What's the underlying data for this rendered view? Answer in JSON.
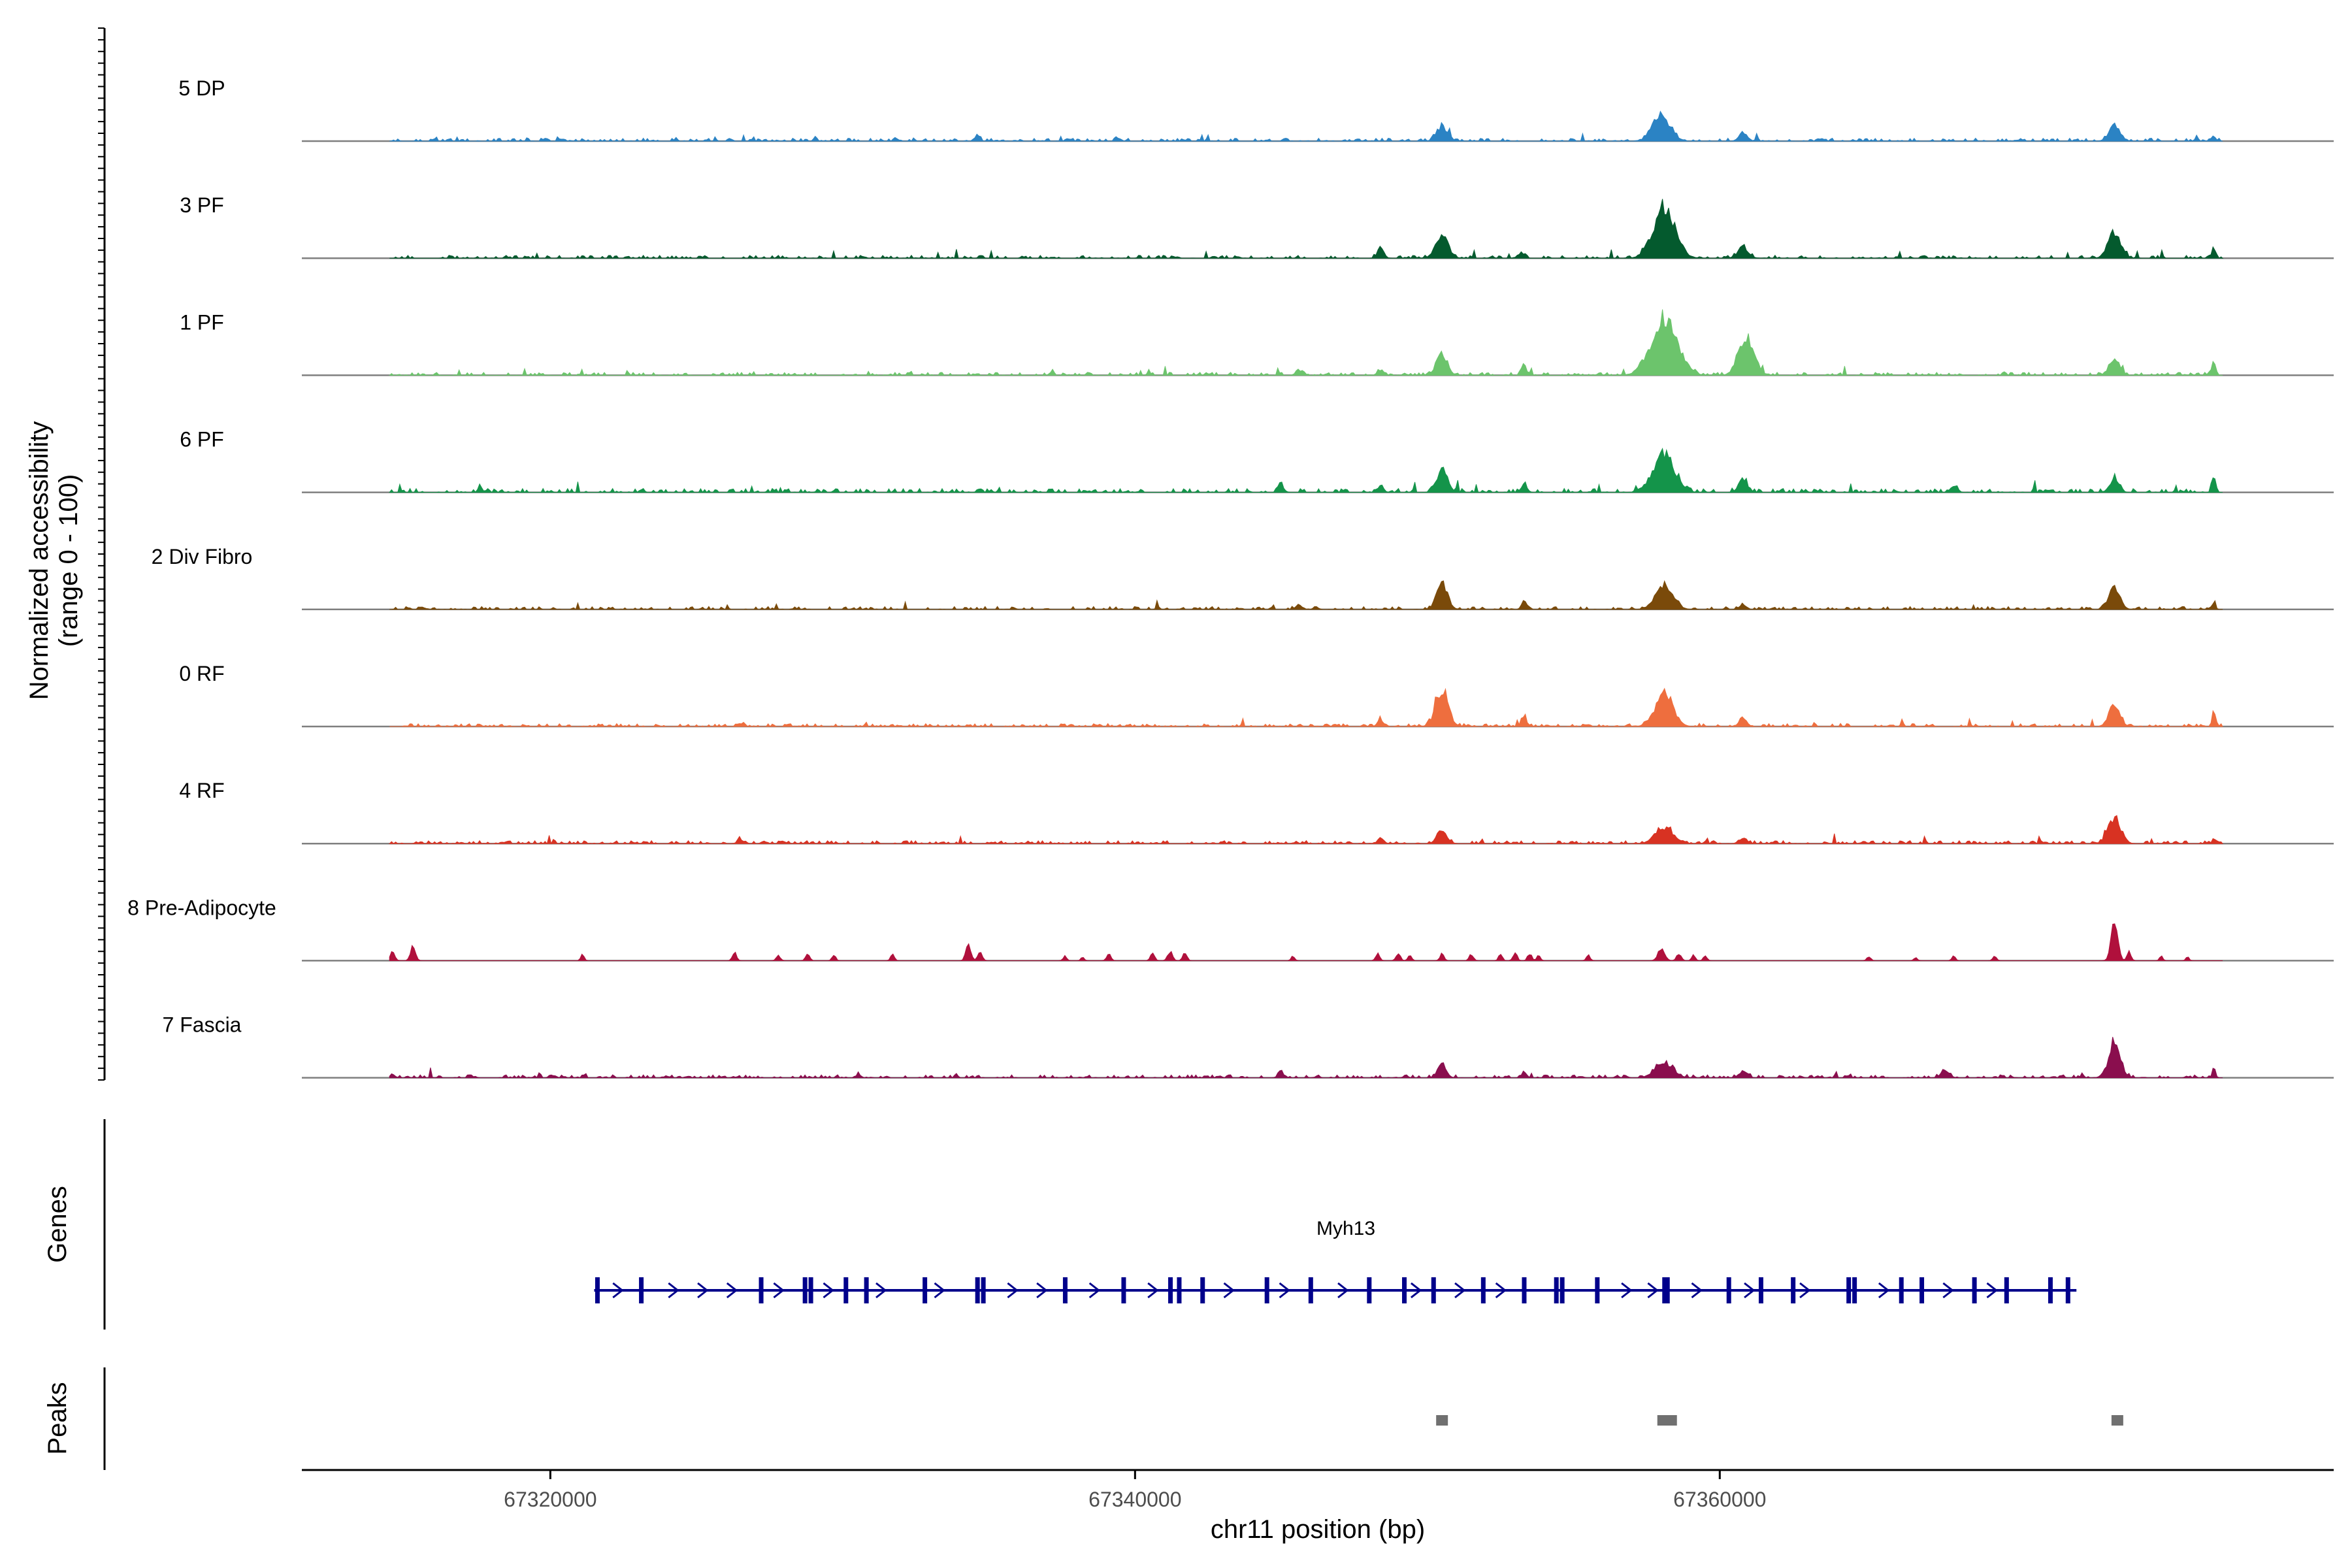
{
  "chart_data": {
    "type": "area",
    "title": "",
    "ylabel_line1": "Normalized accessibility",
    "ylabel_line2": "(range 0 - 100)",
    "xlabel": "chr11 position (bp)",
    "genes_label": "Genes",
    "peaks_label": "Peaks",
    "gene_name": "Myh13",
    "xlim": [
      67311500,
      67381000
    ],
    "ylim": [
      0,
      100
    ],
    "x_ticks": [
      {
        "value": 67320000,
        "label": "67320000"
      },
      {
        "value": 67340000,
        "label": "67340000"
      },
      {
        "value": 67360000,
        "label": "67360000"
      }
    ],
    "signal_range_bp": [
      67314500,
      67377200
    ],
    "gene": {
      "start": 67321500,
      "end": 67372200,
      "strand": "+",
      "color": "#00008B",
      "exons": [
        67321600,
        67323100,
        67327200,
        67328700,
        67328900,
        67330100,
        67330800,
        67332800,
        67334600,
        67334800,
        67337600,
        67339600,
        67341200,
        67341500,
        67342300,
        67344500,
        67346000,
        67348000,
        67349200,
        67350200,
        67351900,
        67353300,
        67354400,
        67354600,
        67355800,
        67358100,
        67358200,
        67360300,
        67361400,
        67362500,
        67364400,
        67364600,
        67366200,
        67366900,
        67368700,
        67369800,
        67371300,
        67371900
      ],
      "arrows": [
        67322300,
        67324200,
        67325200,
        67326200,
        67327800,
        67329500,
        67331300,
        67333300,
        67335800,
        67336800,
        67338600,
        67340600,
        67343200,
        67345100,
        67347100,
        67349600,
        67351100,
        67352500,
        67356800,
        67357700,
        67359200,
        67361000,
        67362900,
        67365600,
        67367800,
        67369300
      ]
    },
    "peaks": [
      67350500,
      67358200,
      67373600
    ],
    "peak_color": "#707070",
    "series": [
      {
        "name": "5 DP",
        "color": "#2B83C4",
        "noise": 3,
        "seed": 11,
        "peaks": [
          [
            67350500,
            16,
            260
          ],
          [
            67358000,
            26,
            420
          ],
          [
            67360800,
            9,
            200
          ],
          [
            67373500,
            18,
            260
          ],
          [
            67376900,
            6,
            80
          ],
          [
            67334600,
            5,
            120
          ]
        ]
      },
      {
        "name": "3 PF",
        "color": "#045A2E",
        "noise": 3,
        "seed": 23,
        "peaks": [
          [
            67350500,
            24,
            300
          ],
          [
            67358100,
            58,
            520
          ],
          [
            67360800,
            12,
            260
          ],
          [
            67373500,
            30,
            300
          ],
          [
            67376900,
            12,
            90
          ],
          [
            67348400,
            10,
            160
          ],
          [
            67353200,
            6,
            150
          ]
        ]
      },
      {
        "name": "1 PF",
        "color": "#6CC46C",
        "noise": 3,
        "seed": 37,
        "peaks": [
          [
            67350500,
            22,
            260
          ],
          [
            67353300,
            12,
            120
          ],
          [
            67358100,
            62,
            620
          ],
          [
            67360900,
            42,
            360
          ],
          [
            67373500,
            16,
            260
          ],
          [
            67376900,
            18,
            90
          ],
          [
            67345600,
            5,
            150
          ],
          [
            67348400,
            6,
            150
          ]
        ]
      },
      {
        "name": "6 PF",
        "color": "#14944A",
        "noise": 4,
        "seed": 41,
        "peaks": [
          [
            67350500,
            26,
            260
          ],
          [
            67353300,
            9,
            140
          ],
          [
            67358100,
            42,
            500
          ],
          [
            67360800,
            14,
            220
          ],
          [
            67373500,
            14,
            220
          ],
          [
            67376900,
            20,
            90
          ],
          [
            67317600,
            7,
            100
          ],
          [
            67345000,
            7,
            140
          ],
          [
            67348400,
            8,
            140
          ],
          [
            67368000,
            8,
            160
          ]
        ]
      },
      {
        "name": "2 Div Fibro",
        "color": "#7A4A0A",
        "noise": 3,
        "seed": 53,
        "peaks": [
          [
            67350500,
            28,
            260
          ],
          [
            67353300,
            9,
            120
          ],
          [
            67358100,
            26,
            420
          ],
          [
            67360800,
            6,
            160
          ],
          [
            67373500,
            24,
            260
          ],
          [
            67376900,
            8,
            80
          ],
          [
            67345600,
            5,
            160
          ]
        ]
      },
      {
        "name": "0 RF",
        "color": "#EE6E3E",
        "noise": 3,
        "seed": 67,
        "peaks": [
          [
            67350500,
            42,
            300
          ],
          [
            67353300,
            12,
            130
          ],
          [
            67358100,
            36,
            420
          ],
          [
            67360800,
            9,
            180
          ],
          [
            67373500,
            22,
            260
          ],
          [
            67376900,
            20,
            80
          ],
          [
            67348400,
            8,
            140
          ],
          [
            67326500,
            4,
            140
          ]
        ]
      },
      {
        "name": "4 RF",
        "color": "#D83222",
        "noise": 3,
        "seed": 71,
        "peaks": [
          [
            67350500,
            14,
            240
          ],
          [
            67358100,
            18,
            420
          ],
          [
            67360800,
            6,
            180
          ],
          [
            67373500,
            28,
            300
          ],
          [
            67376900,
            5,
            80
          ],
          [
            67348400,
            6,
            140
          ],
          [
            67326500,
            5,
            140
          ]
        ]
      },
      {
        "name": "8 Pre-Adipocyte",
        "color": "#B0103C",
        "noise": 0,
        "seed": 83,
        "peaks": [
          [
            67314600,
            10,
            110
          ],
          [
            67315300,
            16,
            120
          ],
          [
            67321100,
            8,
            80
          ],
          [
            67326300,
            9,
            100
          ],
          [
            67327800,
            6,
            100
          ],
          [
            67328800,
            7,
            100
          ],
          [
            67329700,
            6,
            90
          ],
          [
            67331700,
            7,
            90
          ],
          [
            67334300,
            18,
            120
          ],
          [
            67334700,
            12,
            100
          ],
          [
            67337600,
            5,
            90
          ],
          [
            67338200,
            4,
            80
          ],
          [
            67339100,
            8,
            100
          ],
          [
            67340600,
            8,
            100
          ],
          [
            67341200,
            10,
            120
          ],
          [
            67341700,
            9,
            100
          ],
          [
            67345400,
            5,
            90
          ],
          [
            67348300,
            8,
            100
          ],
          [
            67349000,
            9,
            100
          ],
          [
            67349400,
            6,
            90
          ],
          [
            67350500,
            8,
            100
          ],
          [
            67351500,
            7,
            100
          ],
          [
            67352500,
            7,
            90
          ],
          [
            67353000,
            9,
            100
          ],
          [
            67353500,
            8,
            100
          ],
          [
            67353800,
            6,
            90
          ],
          [
            67355500,
            7,
            90
          ],
          [
            67358000,
            14,
            160
          ],
          [
            67358600,
            8,
            110
          ],
          [
            67359100,
            6,
            90
          ],
          [
            67359500,
            5,
            90
          ],
          [
            67365100,
            5,
            90
          ],
          [
            67366700,
            4,
            80
          ],
          [
            67368000,
            5,
            90
          ],
          [
            67369400,
            5,
            90
          ],
          [
            67373500,
            42,
            160
          ],
          [
            67374000,
            10,
            100
          ],
          [
            67375100,
            5,
            80
          ],
          [
            67376000,
            4,
            80
          ]
        ]
      },
      {
        "name": "7 Fascia",
        "color": "#8A0E4E",
        "noise": 3,
        "seed": 97,
        "peaks": [
          [
            67350500,
            14,
            200
          ],
          [
            67358100,
            16,
            420
          ],
          [
            67360800,
            7,
            200
          ],
          [
            67373500,
            32,
            300
          ],
          [
            67376900,
            10,
            80
          ],
          [
            67367700,
            8,
            200
          ],
          [
            67345000,
            5,
            150
          ],
          [
            67353300,
            5,
            120
          ],
          [
            67314600,
            4,
            120
          ]
        ]
      }
    ]
  }
}
